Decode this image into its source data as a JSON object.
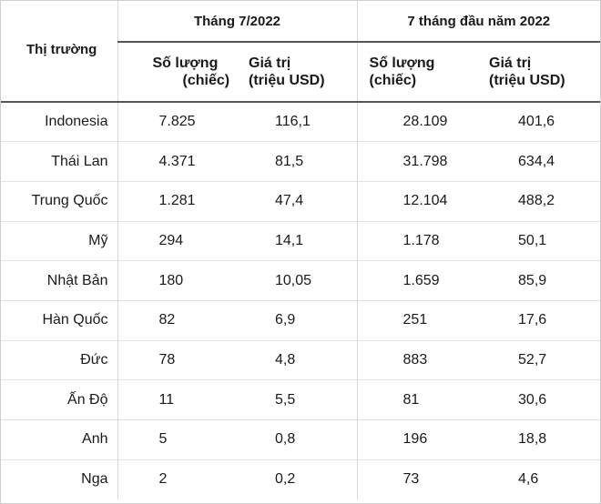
{
  "table": {
    "market_header": "Thị trường",
    "groups": [
      {
        "label": "Tháng 7/2022"
      },
      {
        "label": "7 tháng đầu năm 2022"
      }
    ],
    "subheaders": [
      {
        "line1": "Số lượng",
        "line2": "(chiếc)"
      },
      {
        "line1": "Giá trị",
        "line2": "(triệu USD)"
      },
      {
        "line1": "Số lượng",
        "line2": "(chiếc)"
      },
      {
        "line1": "Giá trị",
        "line2": "(triệu USD)"
      }
    ],
    "rows": [
      {
        "market": "Indonesia",
        "qty_month": "7.825",
        "value_month": "116,1",
        "qty_ytd": "28.109",
        "value_ytd": "401,6"
      },
      {
        "market": "Thái Lan",
        "qty_month": "4.371",
        "value_month": "81,5",
        "qty_ytd": "31.798",
        "value_ytd": "634,4"
      },
      {
        "market": "Trung Quốc",
        "qty_month": "1.281",
        "value_month": "47,4",
        "qty_ytd": "12.104",
        "value_ytd": "488,2"
      },
      {
        "market": "Mỹ",
        "qty_month": "294",
        "value_month": "14,1",
        "qty_ytd": "1.178",
        "value_ytd": "50,1"
      },
      {
        "market": "Nhật Bản",
        "qty_month": "180",
        "value_month": "10,05",
        "qty_ytd": "1.659",
        "value_ytd": "85,9"
      },
      {
        "market": "Hàn Quốc",
        "qty_month": "82",
        "value_month": "6,9",
        "qty_ytd": "251",
        "value_ytd": "17,6"
      },
      {
        "market": "Đức",
        "qty_month": "78",
        "value_month": "4,8",
        "qty_ytd": "883",
        "value_ytd": "52,7"
      },
      {
        "market": "Ấn Độ",
        "qty_month": "11",
        "value_month": "5,5",
        "qty_ytd": "81",
        "value_ytd": "30,6"
      },
      {
        "market": "Anh",
        "qty_month": "5",
        "value_month": "0,8",
        "qty_ytd": "196",
        "value_ytd": "18,8"
      },
      {
        "market": "Nga",
        "qty_month": "2",
        "value_month": "0,2",
        "qty_ytd": "73",
        "value_ytd": "4,6"
      }
    ]
  }
}
